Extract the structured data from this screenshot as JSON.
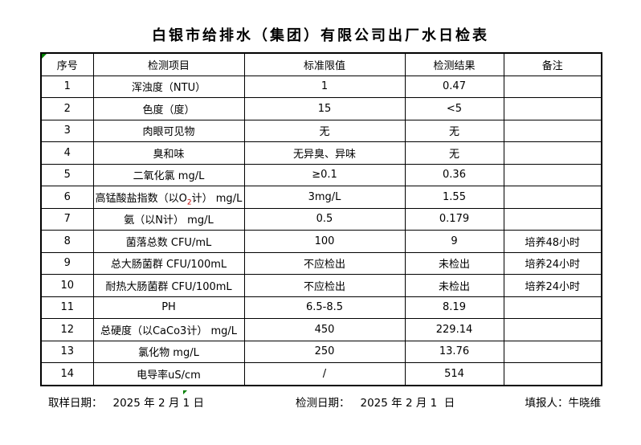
{
  "title": "白银市给排水（集团）有限公司出厂水日检表",
  "table": {
    "headers": [
      "序号",
      "检测项目",
      "标准限值",
      "检测结果",
      "备注"
    ],
    "rows": [
      {
        "no": "1",
        "item": "浑浊度（NTU）",
        "limit": "1",
        "result": "0.47",
        "note": ""
      },
      {
        "no": "2",
        "item": "色度（度）",
        "limit": "15",
        "result": "<5",
        "note": ""
      },
      {
        "no": "3",
        "item": "肉眼可见物",
        "limit": "无",
        "result": "无",
        "note": ""
      },
      {
        "no": "4",
        "item": "臭和味",
        "limit": "无异臭、异味",
        "result": "无",
        "note": ""
      },
      {
        "no": "5",
        "item": "二氧化氯 mg/L",
        "limit": "≥0.1",
        "result": "0.36",
        "note": ""
      },
      {
        "no": "6",
        "item": {
          "pre": "高锰酸盐指数（以O",
          "sub": "2",
          "post": "计） mg/L",
          "sub_color": "#c00000"
        },
        "limit": "3mg/L",
        "result": "1.55",
        "note": ""
      },
      {
        "no": "7",
        "item": "氨（以N计） mg/L",
        "limit": "0.5",
        "result": "0.179",
        "note": ""
      },
      {
        "no": "8",
        "item": "菌落总数 CFU/mL",
        "limit": "100",
        "result": "9",
        "note": "培养48小时"
      },
      {
        "no": "9",
        "item": "总大肠菌群 CFU/100mL",
        "limit": "不应检出",
        "result": "未检出",
        "note": "培养24小时"
      },
      {
        "no": "10",
        "item": "耐热大肠菌群 CFU/100mL",
        "limit": "不应检出",
        "result": "未检出",
        "note": "培养24小时"
      },
      {
        "no": "11",
        "item": "PH",
        "limit": "6.5-8.5",
        "result": "8.19",
        "note": ""
      },
      {
        "no": "12",
        "item": "总硬度（以CaCo3计） mg/L",
        "limit": "450",
        "result": "229.14",
        "note": ""
      },
      {
        "no": "13",
        "item": "氯化物 mg/L",
        "limit": "250",
        "result": "13.76",
        "note": ""
      },
      {
        "no": "14",
        "item": "电导率uS/cm",
        "limit": "/",
        "result": "514",
        "note": ""
      }
    ]
  },
  "footer": {
    "sample_date_label": "取样日期：",
    "sample_date": "2025 年 2 月 1 日",
    "test_date_label": "检测日期：",
    "test_date": "2025 年 2 月 1  日",
    "reporter_label": "填报人：",
    "reporter": "牛晓维"
  },
  "colors": {
    "marker_green": "#008000",
    "subscript_red": "#c00000",
    "grid_border": "#000000"
  }
}
